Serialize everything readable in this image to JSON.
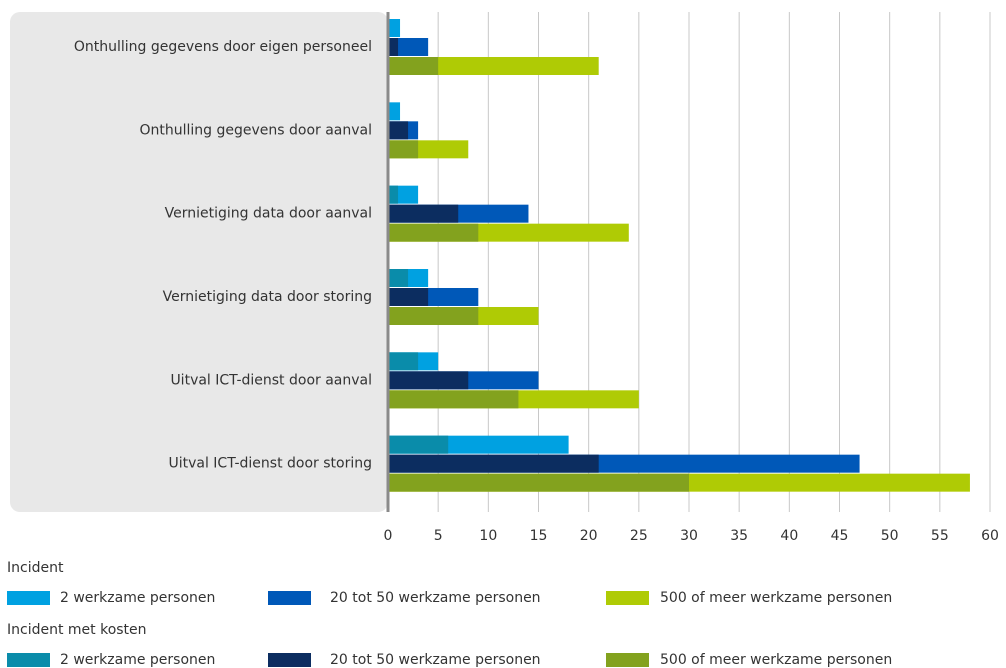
{
  "chart_data": {
    "type": "bar",
    "orientation": "horizontal",
    "categories": [
      "Onthulling gegevens door eigen personeel",
      "Onthulling gegevens door aanval",
      "Vernietiging data door aanval",
      "Vernietiging data door storing",
      "Uitval ICT-dienst door aanval",
      "Uitval ICT-dienst door storing"
    ],
    "groups": [
      {
        "name": "Incident",
        "series": [
          {
            "name": "2 werkzame personen",
            "color": "#00a1e1",
            "values": [
              1.2,
              1.2,
              3,
              4,
              5,
              18
            ]
          },
          {
            "name": "20 tot 50 werkzame personen",
            "color": "#0058b8",
            "values": [
              4,
              3,
              14,
              9,
              15,
              47
            ]
          },
          {
            "name": "500 of meer werkzame personen",
            "color": "#afcb05",
            "values": [
              21,
              8,
              24,
              15,
              25,
              58
            ]
          }
        ]
      },
      {
        "name": "Incident met kosten",
        "series": [
          {
            "name": "2 werkzame personen",
            "color": "#0a8caa",
            "values": [
              0,
              0,
              1,
              2,
              3,
              6
            ]
          },
          {
            "name": "20 tot 50 werkzame personen",
            "color": "#0c2d60",
            "values": [
              1,
              2,
              7,
              4,
              8,
              21
            ]
          },
          {
            "name": "500 of meer werkzame personen",
            "color": "#83a21e",
            "values": [
              5,
              3,
              9,
              9,
              13,
              30
            ]
          }
        ]
      }
    ],
    "xlim": [
      0,
      60
    ],
    "xticks": [
      0,
      5,
      10,
      15,
      20,
      25,
      30,
      35,
      40,
      45,
      50,
      55,
      60
    ],
    "grid": true
  }
}
